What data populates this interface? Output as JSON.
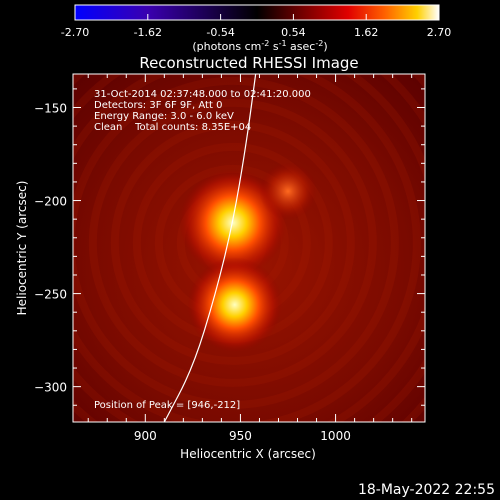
{
  "colorbar": {
    "ticks": [
      "-2.70",
      "-1.62",
      "-0.54",
      "0.54",
      "1.62",
      "2.70"
    ],
    "unit_label_main": "(photons cm",
    "unit_exp1": "-2",
    "unit_mid": " s",
    "unit_exp2": "-1",
    "unit_end": " asec",
    "unit_exp3": "-2",
    "unit_close": ")",
    "colors": [
      "#0000ff",
      "#3a00b0",
      "#000000",
      "#5a0000",
      "#c00000",
      "#ff4000",
      "#ffb000",
      "#ffffff"
    ]
  },
  "chart_data": {
    "type": "heatmap",
    "title": "Reconstructed RHESSI Image",
    "xlabel": "Heliocentric X (arcsec)",
    "ylabel": "Heliocentric Y (arcsec)",
    "xlim": [
      862,
      1047
    ],
    "ylim": [
      -319,
      -132
    ],
    "x_ticks": [
      900,
      950,
      1000
    ],
    "y_ticks": [
      -150,
      -200,
      -250,
      -300
    ],
    "sources": [
      {
        "x": 946,
        "y": -212,
        "peak": 2.7
      },
      {
        "x": 947,
        "y": -256,
        "peak": 2.3
      },
      {
        "x": 975,
        "y": -195,
        "peak": 0.6
      }
    ],
    "limb_curve": [
      [
        910,
        -319
      ],
      [
        925,
        -290
      ],
      [
        937,
        -250
      ],
      [
        946,
        -212
      ],
      [
        953,
        -170
      ],
      [
        958,
        -132
      ]
    ],
    "annotations": [
      "31-Oct-2014 02:37:48.000 to 02:41:20.000",
      "Detectors: 3F 6F 9F, Att 0",
      "Energy Range: 3.0 - 6.0 keV",
      "Clean    Total counts: 8.35E+04",
      "Position of Peak = [946,-212]"
    ]
  },
  "footer": {
    "date": "18-May-2022 22:55"
  }
}
